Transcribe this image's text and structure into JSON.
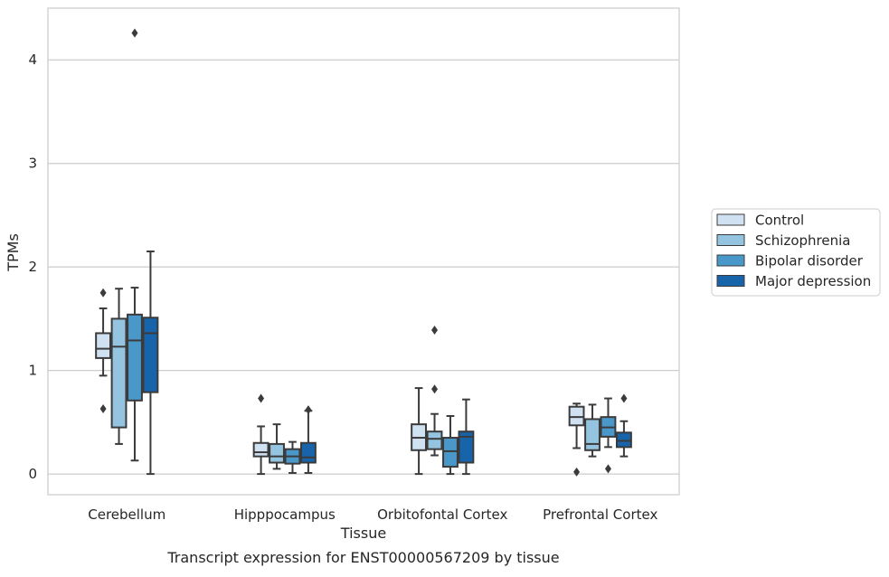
{
  "caption": "Transcript expression for ENST00000567209 by tissue",
  "chart_data": {
    "type": "boxplot",
    "xlabel": "Tissue",
    "ylabel": "TPMs",
    "ylim": [
      -0.2,
      4.5
    ],
    "yticks": [
      0,
      1,
      2,
      3,
      4
    ],
    "grid": "horizontal",
    "legend_position": "right",
    "categories": [
      "Cerebellum",
      "Hipppocampus",
      "Orbitofontal Cortex",
      "Prefrontal Cortex"
    ],
    "series": [
      {
        "name": "Control",
        "color": "#d0e1f2",
        "boxes": [
          {
            "whislo": 0.95,
            "q1": 1.12,
            "med": 1.21,
            "q3": 1.36,
            "whishi": 1.6,
            "fliers": [
              1.75,
              0.63
            ]
          },
          {
            "whislo": 0.0,
            "q1": 0.17,
            "med": 0.21,
            "q3": 0.3,
            "whishi": 0.46,
            "fliers": [
              0.73
            ]
          },
          {
            "whislo": 0.0,
            "q1": 0.23,
            "med": 0.35,
            "q3": 0.48,
            "whishi": 0.83,
            "fliers": []
          },
          {
            "whislo": 0.25,
            "q1": 0.47,
            "med": 0.55,
            "q3": 0.65,
            "whishi": 0.68,
            "fliers": [
              0.02
            ]
          }
        ]
      },
      {
        "name": "Schizophrenia",
        "color": "#94c4df",
        "boxes": [
          {
            "whislo": 0.29,
            "q1": 0.45,
            "med": 1.23,
            "q3": 1.5,
            "whishi": 1.79,
            "fliers": []
          },
          {
            "whislo": 0.05,
            "q1": 0.11,
            "med": 0.17,
            "q3": 0.29,
            "whishi": 0.48,
            "fliers": []
          },
          {
            "whislo": 0.18,
            "q1": 0.24,
            "med": 0.34,
            "q3": 0.41,
            "whishi": 0.58,
            "fliers": [
              1.39,
              0.82
            ]
          },
          {
            "whislo": 0.17,
            "q1": 0.23,
            "med": 0.29,
            "q3": 0.53,
            "whishi": 0.67,
            "fliers": []
          }
        ]
      },
      {
        "name": "Bipolar disorder",
        "color": "#4a98c9",
        "boxes": [
          {
            "whislo": 0.13,
            "q1": 0.71,
            "med": 1.29,
            "q3": 1.54,
            "whishi": 1.8,
            "fliers": [
              4.26
            ]
          },
          {
            "whislo": 0.01,
            "q1": 0.1,
            "med": 0.17,
            "q3": 0.24,
            "whishi": 0.31,
            "fliers": []
          },
          {
            "whislo": 0.0,
            "q1": 0.07,
            "med": 0.22,
            "q3": 0.35,
            "whishi": 0.56,
            "fliers": []
          },
          {
            "whislo": 0.26,
            "q1": 0.36,
            "med": 0.45,
            "q3": 0.55,
            "whishi": 0.73,
            "fliers": [
              0.05
            ]
          }
        ]
      },
      {
        "name": "Major depression",
        "color": "#1764ab",
        "boxes": [
          {
            "whislo": 0.0,
            "q1": 0.79,
            "med": 1.36,
            "q3": 1.51,
            "whishi": 2.15,
            "fliers": []
          },
          {
            "whislo": 0.01,
            "q1": 0.11,
            "med": 0.16,
            "q3": 0.3,
            "whishi": 0.61,
            "fliers": [
              0.62
            ]
          },
          {
            "whislo": 0.0,
            "q1": 0.11,
            "med": 0.36,
            "q3": 0.41,
            "whishi": 0.72,
            "fliers": []
          },
          {
            "whislo": 0.17,
            "q1": 0.26,
            "med": 0.32,
            "q3": 0.4,
            "whishi": 0.51,
            "fliers": [
              0.73
            ]
          }
        ]
      }
    ]
  }
}
